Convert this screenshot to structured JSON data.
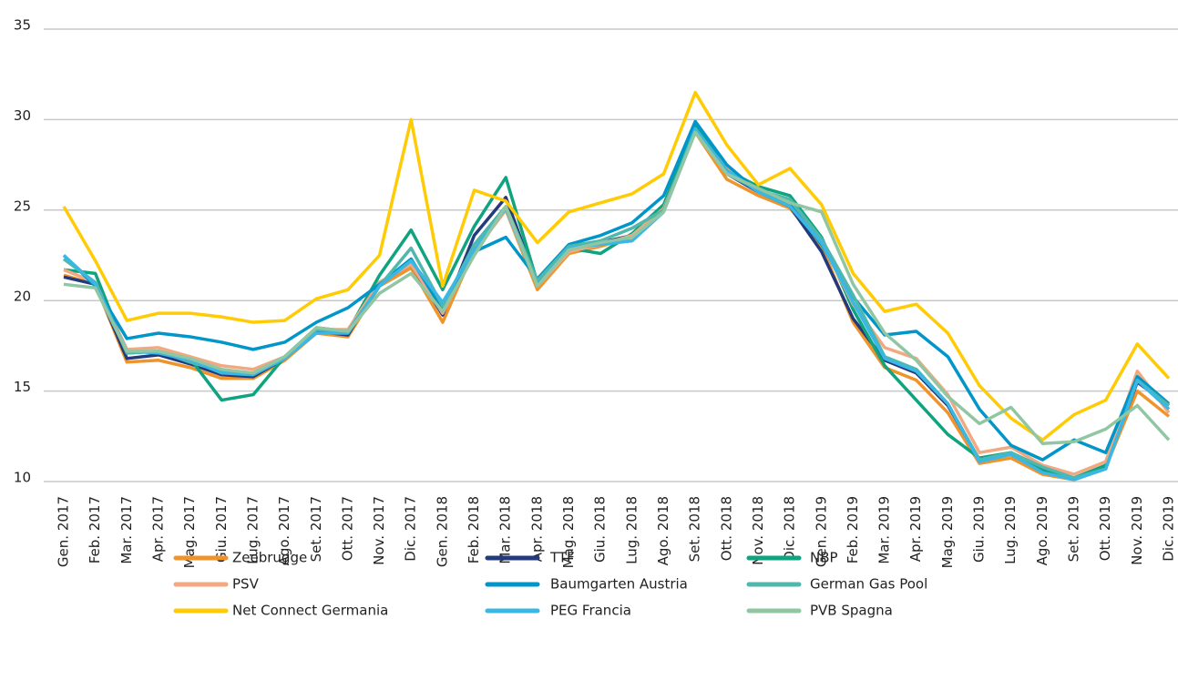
{
  "chart_data": {
    "type": "line",
    "categories": [
      "Gen. 2017",
      "Feb. 2017",
      "Mar. 2017",
      "Apr. 2017",
      "Mag. 2017",
      "Giu. 2017",
      "Lug. 2017",
      "Ago. 2017",
      "Set. 2017",
      "Ott. 2017",
      "Nov. 2017",
      "Dic. 2017",
      "Gen. 2018",
      "Feb. 2018",
      "Mar. 2018",
      "Apr. 2018",
      "Mag. 2018",
      "Giu. 2018",
      "Lug. 2018",
      "Ago. 2018",
      "Set. 2018",
      "Ott. 2018",
      "Nov. 2018",
      "Dic. 2018",
      "Gen. 2019",
      "Feb. 2019",
      "Mar. 2019",
      "Apr. 2019",
      "Mag. 2019",
      "Giu. 2019",
      "Lug. 2019",
      "Ago. 2019",
      "Set. 2019",
      "Ott. 2019",
      "Nov. 2019",
      "Dic. 2019"
    ],
    "ylim": [
      10,
      35
    ],
    "yticks": [
      10,
      15,
      20,
      25,
      30,
      35
    ],
    "grid": true,
    "series": [
      {
        "name": "Zeebrugge",
        "color": "#f0932a",
        "values": [
          21.4,
          20.9,
          16.6,
          16.7,
          16.3,
          15.7,
          15.7,
          16.7,
          18.2,
          18.0,
          20.8,
          21.8,
          18.8,
          22.8,
          25.0,
          20.6,
          22.6,
          23.0,
          23.5,
          25.0,
          29.3,
          26.7,
          25.8,
          25.1,
          23.0,
          18.8,
          16.3,
          15.6,
          13.8,
          11.0,
          11.3,
          10.4,
          10.1,
          10.8,
          15.0,
          13.6
        ]
      },
      {
        "name": "TTF",
        "color": "#233a7c",
        "values": [
          21.3,
          20.9,
          16.8,
          17.0,
          16.5,
          15.9,
          15.8,
          16.8,
          18.3,
          18.1,
          21.0,
          22.0,
          19.2,
          23.6,
          25.7,
          20.9,
          23.0,
          23.2,
          23.6,
          25.2,
          29.5,
          27.0,
          26.0,
          25.2,
          22.7,
          19.0,
          16.7,
          16.0,
          14.2,
          11.2,
          11.5,
          10.6,
          10.2,
          10.8,
          15.5,
          14.2
        ]
      },
      {
        "name": "NBP",
        "color": "#0fa37f",
        "values": [
          21.7,
          21.5,
          17.1,
          17.2,
          16.8,
          14.5,
          14.8,
          16.9,
          18.5,
          18.3,
          21.4,
          23.9,
          20.6,
          24.1,
          26.8,
          21.0,
          22.9,
          22.6,
          23.7,
          25.3,
          29.7,
          27.2,
          26.3,
          25.8,
          23.5,
          19.5,
          16.4,
          14.5,
          12.6,
          11.3,
          11.6,
          10.7,
          10.2,
          10.9,
          15.6,
          14.0
        ]
      },
      {
        "name": "PSV",
        "color": "#f2a982",
        "values": [
          21.7,
          21.0,
          17.3,
          17.4,
          16.9,
          16.4,
          16.2,
          16.9,
          18.4,
          18.4,
          21.0,
          22.0,
          19.3,
          22.7,
          25.0,
          20.8,
          22.7,
          23.1,
          23.6,
          25.1,
          29.3,
          27.3,
          26.1,
          25.3,
          23.2,
          19.8,
          17.4,
          16.8,
          14.8,
          11.6,
          11.9,
          10.9,
          10.4,
          11.1,
          16.1,
          13.8
        ]
      },
      {
        "name": "Baumgarten Austria",
        "color": "#0096c9",
        "values": [
          22.5,
          20.8,
          17.9,
          18.2,
          18.0,
          17.7,
          17.3,
          17.7,
          18.8,
          19.6,
          20.9,
          22.3,
          19.5,
          22.7,
          23.5,
          21.2,
          23.1,
          23.6,
          24.3,
          25.8,
          29.9,
          27.5,
          26.0,
          25.3,
          23.1,
          20.2,
          18.1,
          18.3,
          16.9,
          14.0,
          12.0,
          11.2,
          12.3,
          11.6,
          15.8,
          14.3
        ]
      },
      {
        "name": "German Gas Pool",
        "color": "#4fb7ac",
        "values": [
          22.3,
          21.0,
          17.1,
          17.2,
          16.6,
          16.1,
          16.0,
          16.8,
          18.4,
          18.3,
          20.8,
          22.9,
          19.7,
          23.1,
          25.2,
          21.1,
          23.0,
          23.3,
          24.0,
          25.0,
          29.4,
          27.0,
          26.1,
          25.6,
          23.4,
          20.3,
          16.9,
          16.2,
          14.3,
          11.2,
          11.6,
          10.8,
          10.2,
          10.7,
          15.6,
          14.2
        ]
      },
      {
        "name": "Net Connect Germania",
        "color": "#ffcb05",
        "values": [
          25.2,
          22.2,
          18.9,
          19.3,
          19.3,
          19.1,
          18.8,
          18.9,
          20.1,
          20.6,
          22.5,
          30.0,
          20.8,
          26.1,
          25.5,
          23.2,
          24.9,
          25.4,
          25.9,
          27.0,
          31.5,
          28.6,
          26.4,
          27.3,
          25.3,
          21.5,
          19.4,
          19.8,
          18.2,
          15.3,
          13.5,
          12.3,
          13.7,
          14.5,
          17.6,
          15.7
        ]
      },
      {
        "name": "PEG Francia",
        "color": "#3bb7e4",
        "values": [
          22.5,
          20.9,
          17.2,
          17.1,
          16.7,
          16.0,
          15.9,
          16.8,
          18.2,
          18.2,
          20.8,
          22.2,
          19.9,
          22.8,
          25.1,
          20.8,
          22.9,
          23.1,
          23.3,
          24.9,
          29.5,
          27.2,
          26.0,
          25.2,
          23.2,
          19.9,
          16.8,
          16.1,
          14.3,
          11.1,
          11.5,
          10.5,
          10.1,
          10.7,
          15.6,
          14.0
        ]
      },
      {
        "name": "PVB Spagna",
        "color": "#91c6a3",
        "values": [
          20.9,
          20.7,
          17.2,
          17.2,
          16.8,
          16.2,
          16.0,
          16.9,
          18.5,
          18.3,
          20.4,
          21.5,
          19.4,
          22.5,
          25.2,
          20.8,
          22.8,
          23.2,
          23.5,
          24.9,
          29.3,
          27.0,
          26.2,
          25.4,
          24.9,
          20.9,
          18.2,
          16.7,
          14.7,
          13.2,
          14.1,
          12.1,
          12.2,
          12.9,
          14.2,
          12.3
        ]
      }
    ]
  }
}
